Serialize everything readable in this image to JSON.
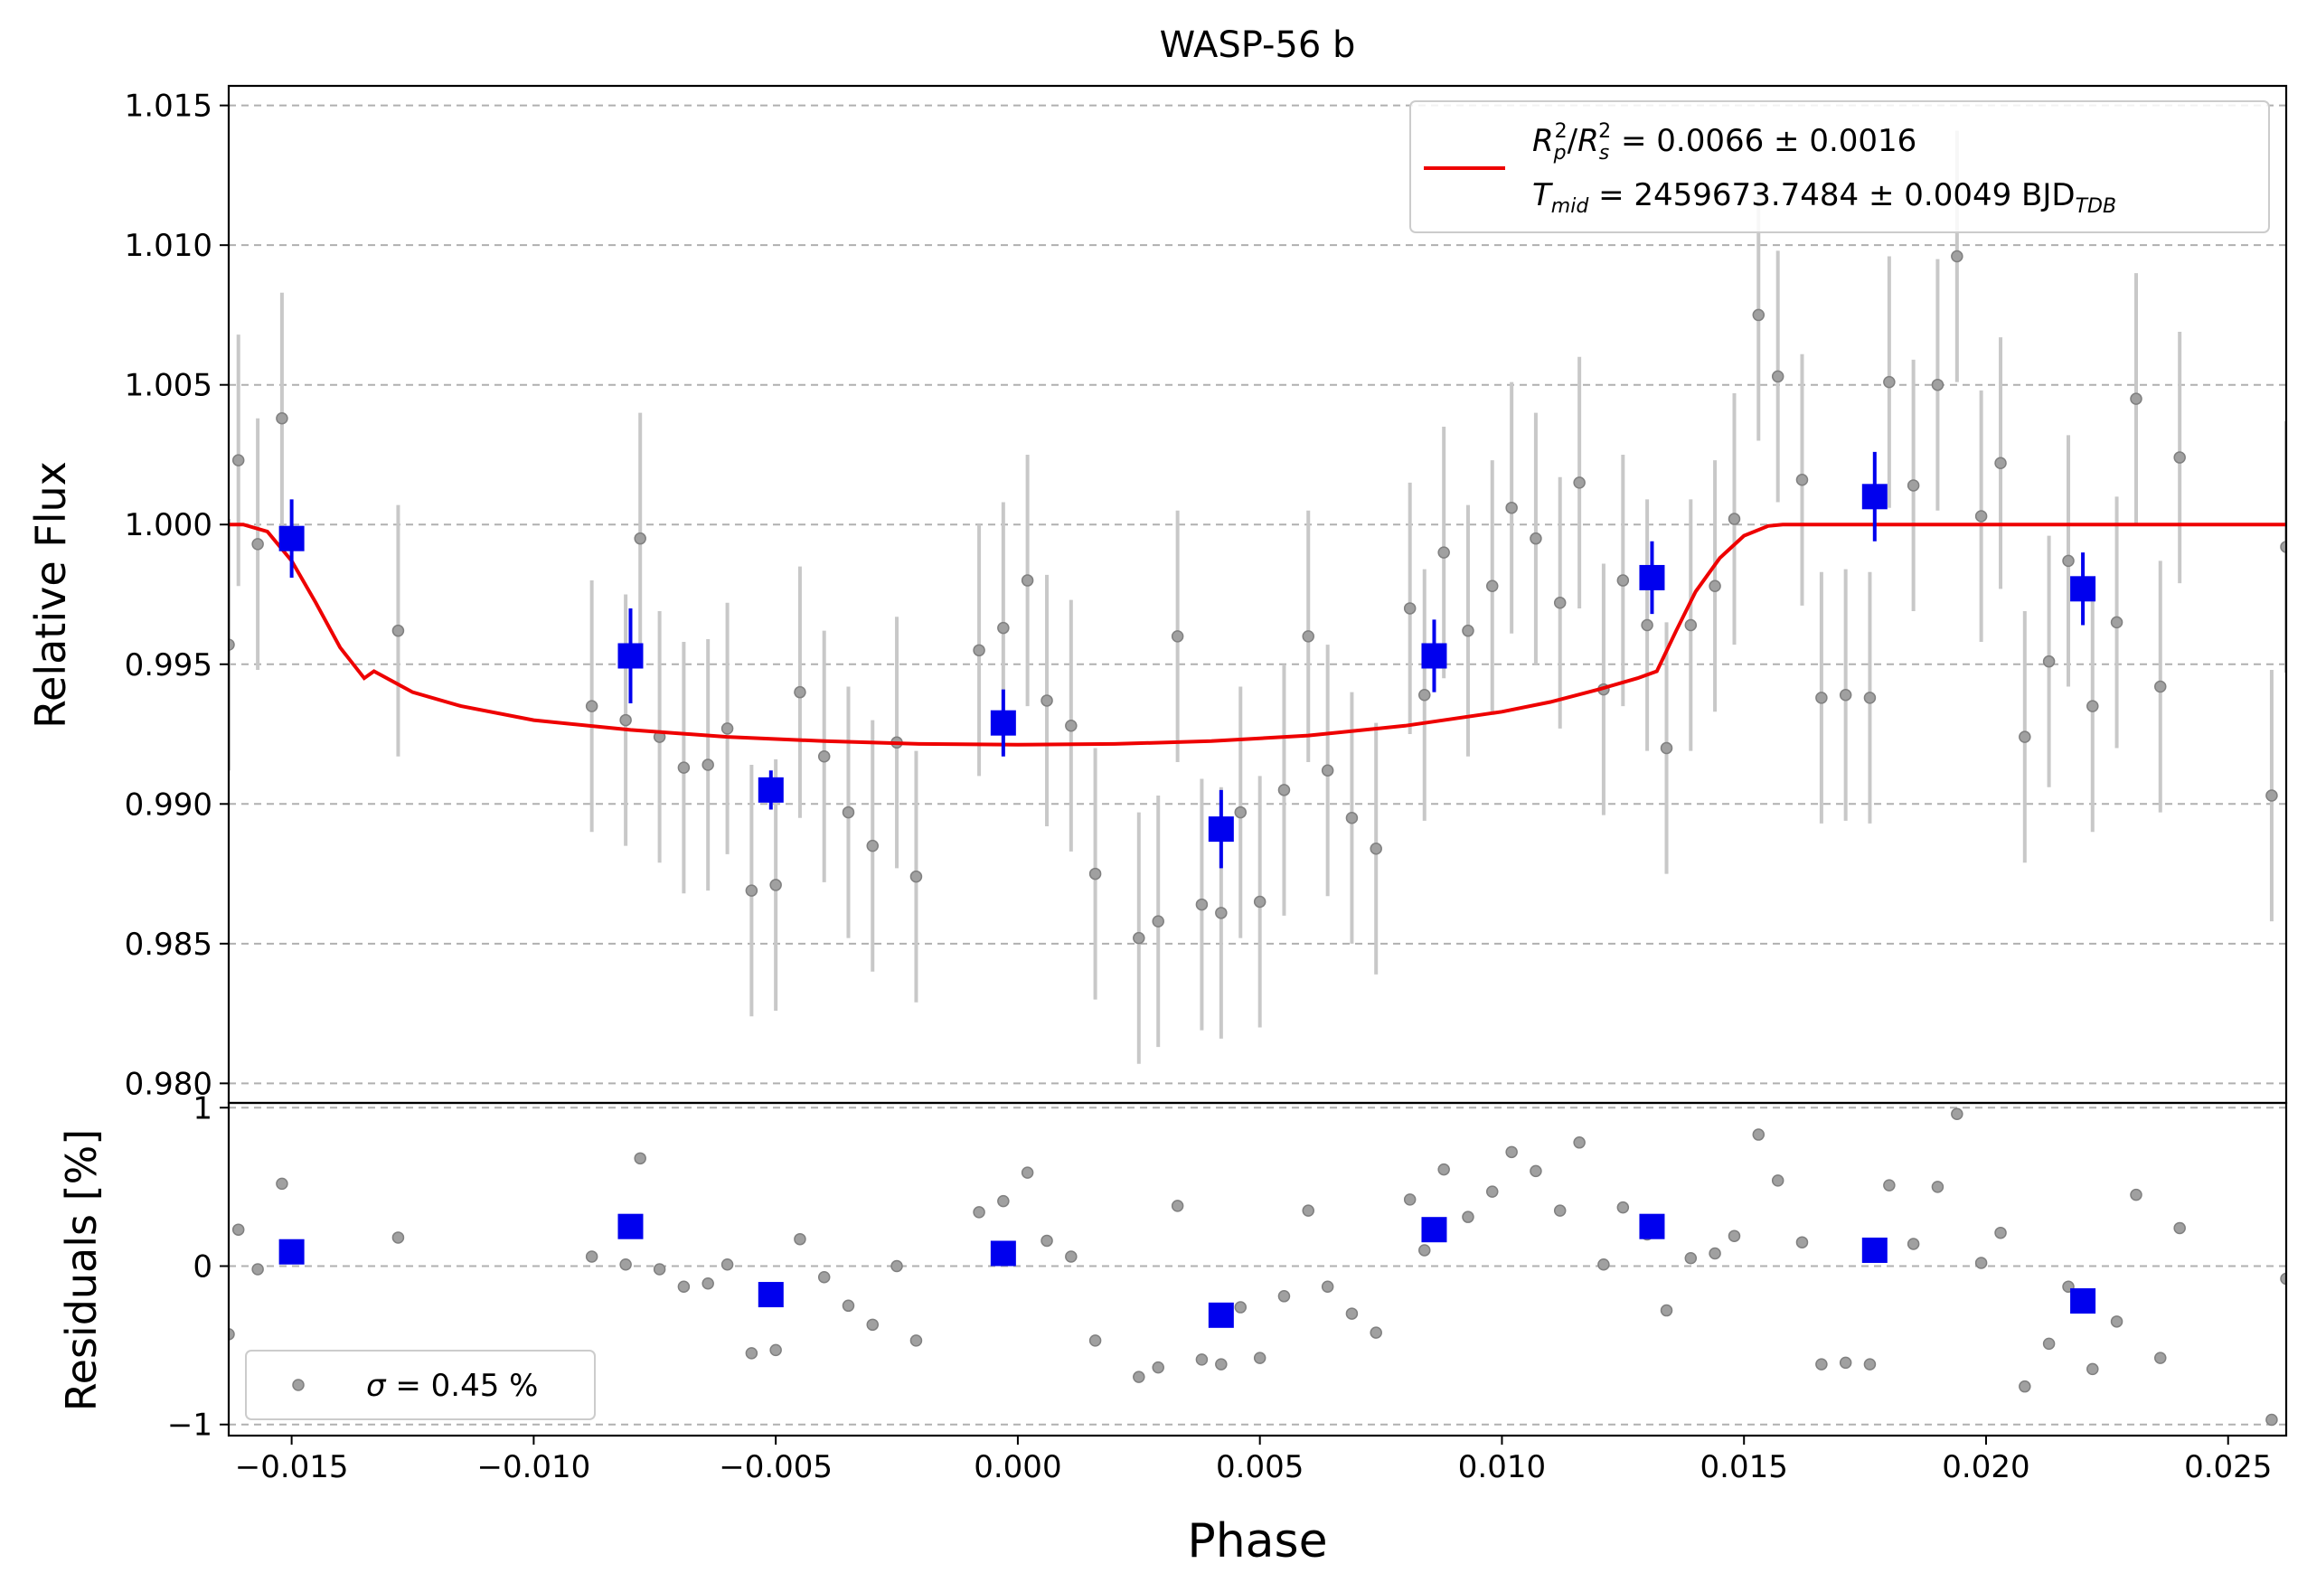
{
  "chart_data": {
    "type": "scatter",
    "title": "WASP-56 b",
    "xlabel": "Phase",
    "xlim": [
      -0.0163,
      0.0262
    ],
    "x_ticks": [
      -0.015,
      -0.01,
      -0.005,
      0.0,
      0.005,
      0.01,
      0.015,
      0.02,
      0.025
    ],
    "x_tick_labels": [
      "−0.015",
      "−0.010",
      "−0.005",
      "0.000",
      "0.005",
      "0.010",
      "0.015",
      "0.020",
      "0.025"
    ],
    "grid": "horizontal dashed",
    "colors": {
      "model": "#ee0000",
      "binned": "#0000ee",
      "unbinned": "#808080",
      "errorbar": "#c8c8c8"
    },
    "top_panel": {
      "ylabel": "Relative Flux",
      "ylim": [
        0.9793,
        1.0157
      ],
      "y_ticks": [
        0.98,
        0.985,
        0.99,
        0.995,
        1.0,
        1.005,
        1.01,
        1.015
      ],
      "y_tick_labels": [
        "0.980",
        "0.985",
        "0.990",
        "0.995",
        "1.000",
        "1.005",
        "1.010",
        "1.015"
      ],
      "legend": {
        "placement": "top-right",
        "line1": {
          "lhs_base1": "R",
          "lhs_sub1": "p",
          "lhs_sup1": "2",
          "slash": "/",
          "lhs_base2": "R",
          "lhs_sub2": "s",
          "lhs_sup2": "2",
          "rhs": " = 0.0066 ± 0.0016"
        },
        "line2": {
          "lhs_base": "T",
          "lhs_sub": "mid",
          "rhs": " = 2459673.7484 ± 0.0049 BJD",
          "unit_sub": "TDB"
        }
      },
      "model": {
        "name": "transit model",
        "x": [
          -0.0163,
          -0.016,
          -0.0155,
          -0.015,
          -0.0145,
          -0.014,
          -0.0135,
          -0.0133,
          -0.0125,
          -0.0115,
          -0.01,
          -0.008,
          -0.006,
          -0.004,
          -0.002,
          0.0,
          0.002,
          0.004,
          0.006,
          0.008,
          0.01,
          0.011,
          0.012,
          0.0128,
          0.0132,
          0.0136,
          0.014,
          0.0145,
          0.015,
          0.0155,
          0.0158,
          0.0262
        ],
        "y": [
          1.0,
          1.0,
          0.99975,
          0.9987,
          0.9972,
          0.9956,
          0.9945,
          0.99475,
          0.994,
          0.9935,
          0.993,
          0.99265,
          0.9924,
          0.99225,
          0.99215,
          0.99212,
          0.99215,
          0.99225,
          0.99245,
          0.9928,
          0.9933,
          0.99365,
          0.9941,
          0.9945,
          0.99475,
          0.9962,
          0.9976,
          0.9988,
          0.9996,
          0.99995,
          1.0,
          1.0
        ]
      },
      "unbinned": {
        "x": [
          -0.0163,
          -0.0161,
          -0.0157,
          -0.0152,
          -0.0128,
          -0.0088,
          -0.0081,
          -0.0078,
          -0.0074,
          -0.0069,
          -0.0064,
          -0.006,
          -0.0055,
          -0.005,
          -0.0045,
          -0.004,
          -0.0035,
          -0.003,
          -0.0025,
          -0.0021,
          -0.0008,
          -0.0003,
          0.0002,
          0.0006,
          0.0011,
          0.0016,
          0.0025,
          0.0029,
          0.0033,
          0.0038,
          0.0042,
          0.0046,
          0.005,
          0.0055,
          0.006,
          0.0064,
          0.0069,
          0.0074,
          0.0081,
          0.0084,
          0.0088,
          0.0093,
          0.0098,
          0.0102,
          0.0107,
          0.0112,
          0.0116,
          0.0121,
          0.0125,
          0.013,
          0.0134,
          0.0139,
          0.0144,
          0.0148,
          0.0153,
          0.0157,
          0.0162,
          0.0166,
          0.0171,
          0.0176,
          0.018,
          0.0185,
          0.019,
          0.0194,
          0.0199,
          0.0203,
          0.0208,
          0.0213,
          0.0217,
          0.0222,
          0.0227,
          0.0231,
          0.0236,
          0.024,
          0.0259,
          0.0262
        ],
        "y": [
          0.9957,
          1.0023,
          0.9993,
          1.0038,
          0.9962,
          0.9935,
          0.993,
          0.9995,
          0.9924,
          0.9913,
          0.9914,
          0.9927,
          0.9869,
          0.9871,
          0.994,
          0.9917,
          0.9897,
          0.9885,
          0.9922,
          0.9874,
          0.9955,
          0.9963,
          0.998,
          0.9937,
          0.9928,
          0.9875,
          0.9852,
          0.9858,
          0.996,
          0.9864,
          0.9861,
          0.9897,
          0.9865,
          0.9905,
          0.996,
          0.9912,
          0.9895,
          0.9884,
          0.997,
          0.9939,
          0.999,
          0.9962,
          0.9978,
          1.0006,
          0.9995,
          0.9972,
          1.0015,
          0.9941,
          0.998,
          0.9964,
          0.992,
          0.9964,
          0.9978,
          1.0002,
          1.0075,
          1.0053,
          1.0016,
          0.9938,
          0.9939,
          0.9938,
          1.0051,
          1.0014,
          1.005,
          1.0096,
          1.0003,
          1.0022,
          0.9924,
          0.9951,
          0.9987,
          0.9935,
          0.9965,
          1.0045,
          0.9942,
          1.0024,
          0.9903,
          0.9992
        ],
        "yerr": 0.0045
      },
      "binned": {
        "x": [
          -0.015,
          -0.008,
          -0.0051,
          -0.0003,
          0.0042,
          0.0086,
          0.0131,
          0.0177,
          0.022
        ],
        "y": [
          0.9995,
          0.9953,
          0.9905,
          0.9929,
          0.9891,
          0.9953,
          0.9981,
          1.001,
          0.9977
        ],
        "yerr": [
          0.0014,
          0.0017,
          0.0007,
          0.0012,
          0.0014,
          0.0013,
          0.0013,
          0.0016,
          0.0013
        ]
      }
    },
    "bottom_panel": {
      "ylabel": "Residuals [%]",
      "ylim": [
        -1.07,
        1.03
      ],
      "y_ticks": [
        -1,
        0,
        1
      ],
      "y_tick_labels": [
        "−1",
        "0",
        "1"
      ],
      "legend": {
        "placement": "bottom-left",
        "symbol": "σ",
        "text": " = 0.45 %"
      },
      "unbinned_y": [
        -0.43,
        0.23,
        -0.02,
        0.52,
        0.18,
        0.06,
        0.01,
        0.68,
        -0.02,
        -0.13,
        -0.11,
        0.01,
        -0.55,
        -0.53,
        0.17,
        -0.07,
        -0.25,
        -0.37,
        0.0,
        -0.47,
        0.34,
        0.41,
        0.59,
        0.16,
        0.06,
        -0.47,
        -0.7,
        -0.64,
        0.38,
        -0.59,
        -0.62,
        -0.26,
        -0.58,
        -0.19,
        0.35,
        -0.13,
        -0.3,
        -0.42,
        0.42,
        0.1,
        0.61,
        0.31,
        0.47,
        0.72,
        0.6,
        0.35,
        0.78,
        0.01,
        0.37,
        0.2,
        -0.28,
        0.05,
        0.08,
        0.19,
        0.83,
        0.54,
        0.15,
        -0.62,
        -0.61,
        -0.62,
        0.51,
        0.14,
        0.5,
        0.96,
        0.02,
        0.21,
        -0.76,
        -0.49,
        -0.13,
        -0.65,
        -0.35,
        0.45,
        -0.58,
        0.24,
        -0.97,
        -0.08
      ],
      "binned_y": [
        0.09,
        0.25,
        -0.18,
        0.08,
        -0.31,
        0.23,
        0.25,
        0.1,
        -0.22
      ]
    }
  }
}
